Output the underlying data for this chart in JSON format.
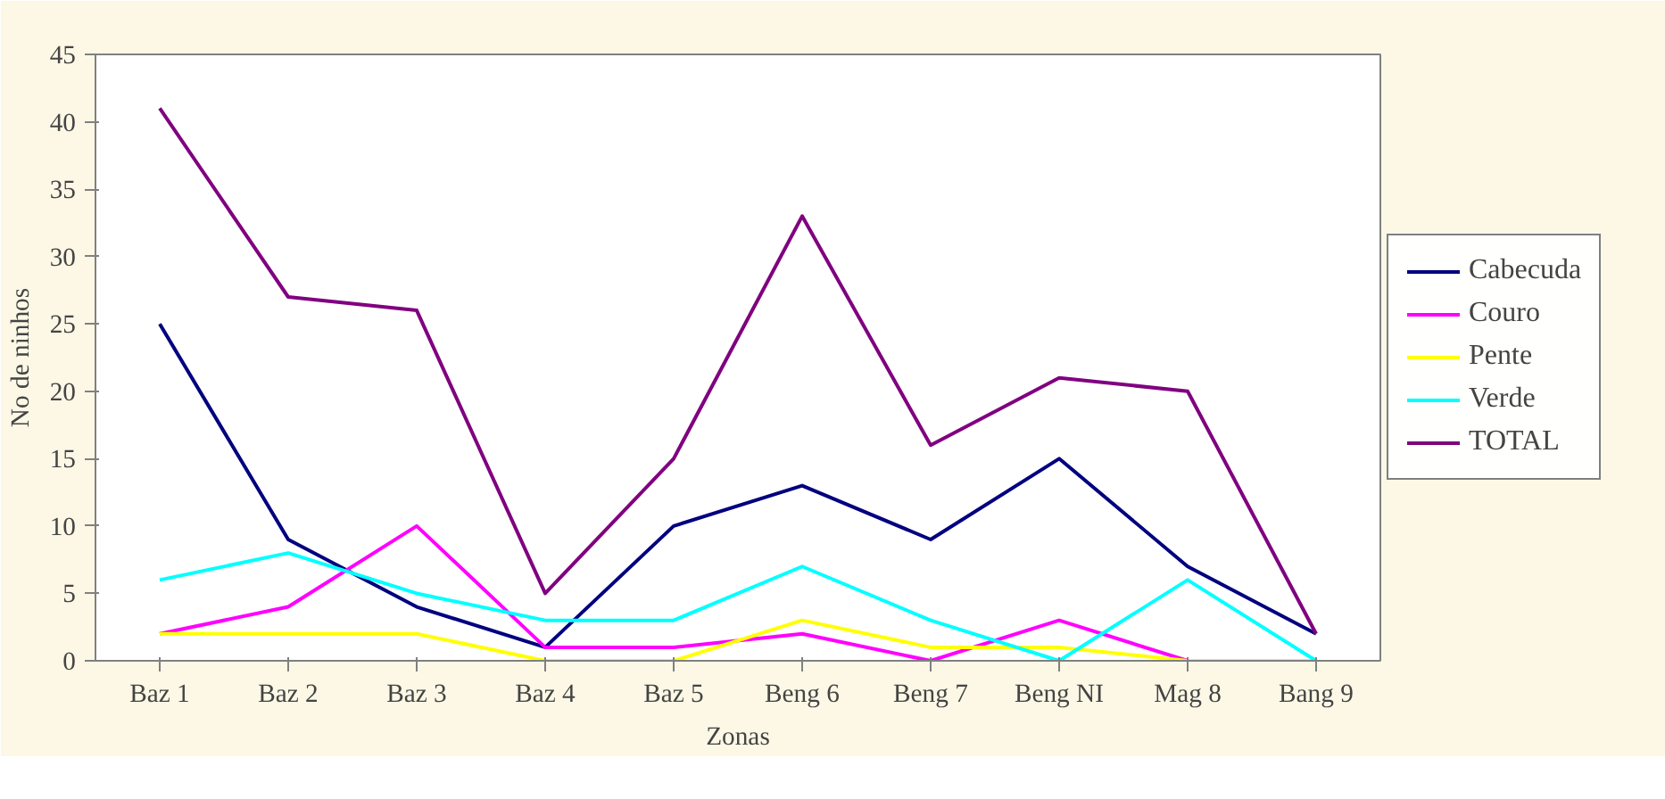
{
  "chart_data": {
    "type": "line",
    "xlabel": "Zonas",
    "ylabel": "No de ninhos",
    "categories": [
      "Baz 1",
      "Baz 2",
      "Baz 3",
      "Baz 4",
      "Baz 5",
      "Beng 6",
      "Beng 7",
      "Beng NI",
      "Mag 8",
      "Bang 9"
    ],
    "series": [
      {
        "name": "Cabecuda",
        "color": "#000080",
        "values": [
          25,
          9,
          4,
          1,
          10,
          13,
          9,
          15,
          7,
          2
        ]
      },
      {
        "name": "Couro",
        "color": "#ff00ff",
        "values": [
          2,
          4,
          10,
          1,
          1,
          2,
          0,
          3,
          0,
          0
        ]
      },
      {
        "name": "Pente",
        "color": "#ffff00",
        "values": [
          2,
          2,
          2,
          0,
          0,
          3,
          1,
          1,
          0,
          0
        ]
      },
      {
        "name": "Verde",
        "color": "#00ffff",
        "values": [
          6,
          8,
          5,
          3,
          3,
          7,
          3,
          0,
          6,
          0
        ]
      },
      {
        "name": "TOTAL",
        "color": "#800080",
        "values": [
          41,
          27,
          26,
          5,
          15,
          33,
          16,
          21,
          20,
          2
        ]
      }
    ],
    "ylim": [
      0,
      45
    ],
    "yticks": [
      0,
      5,
      10,
      15,
      20,
      25,
      30,
      35,
      40,
      45
    ],
    "grid": false,
    "legend": "right",
    "marker": "none",
    "line_style": "solid"
  }
}
